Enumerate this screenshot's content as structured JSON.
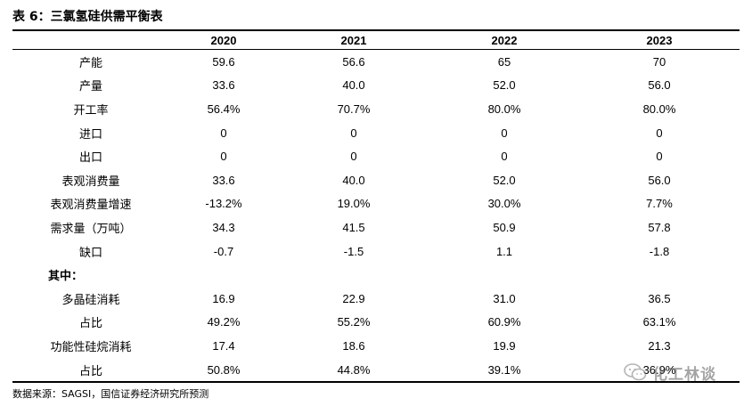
{
  "title": "表 6：三氯氢硅供需平衡表",
  "table": {
    "header": [
      "",
      "2020",
      "2021",
      "2022",
      "2023"
    ],
    "rows": [
      {
        "label": "产能",
        "values": [
          "59.6",
          "56.6",
          "65",
          "70"
        ]
      },
      {
        "label": "产量",
        "values": [
          "33.6",
          "40.0",
          "52.0",
          "56.0"
        ]
      },
      {
        "label": "开工率",
        "values": [
          "56.4%",
          "70.7%",
          "80.0%",
          "80.0%"
        ]
      },
      {
        "label": "进口",
        "values": [
          "0",
          "0",
          "0",
          "0"
        ]
      },
      {
        "label": "出口",
        "values": [
          "0",
          "0",
          "0",
          "0"
        ]
      },
      {
        "label": "表观消费量",
        "values": [
          "33.6",
          "40.0",
          "52.0",
          "56.0"
        ]
      },
      {
        "label": "表观消费量增速",
        "values": [
          "-13.2%",
          "19.0%",
          "30.0%",
          "7.7%"
        ]
      },
      {
        "label": "需求量（万吨）",
        "values": [
          "34.3",
          "41.5",
          "50.9",
          "57.8"
        ]
      },
      {
        "label": "缺口",
        "values": [
          "-0.7",
          "-1.5",
          "1.1",
          "-1.8"
        ]
      },
      {
        "label": "其中：",
        "values": [
          "",
          "",
          "",
          ""
        ]
      },
      {
        "label": "多晶硅消耗",
        "values": [
          "16.9",
          "22.9",
          "31.0",
          "36.5"
        ]
      },
      {
        "label": "占比",
        "values": [
          "49.2%",
          "55.2%",
          "60.9%",
          "63.1%"
        ]
      },
      {
        "label": "功能性硅烷消耗",
        "values": [
          "17.4",
          "18.6",
          "19.9",
          "21.3"
        ]
      },
      {
        "label": "占比",
        "values": [
          "50.8%",
          "44.8%",
          "39.1%",
          "36.9%"
        ]
      }
    ]
  },
  "source": "数据来源：SAGSI，国信证券经济研究所预测",
  "watermark": {
    "icon": "wechat-icon",
    "text": "化工林谈"
  }
}
